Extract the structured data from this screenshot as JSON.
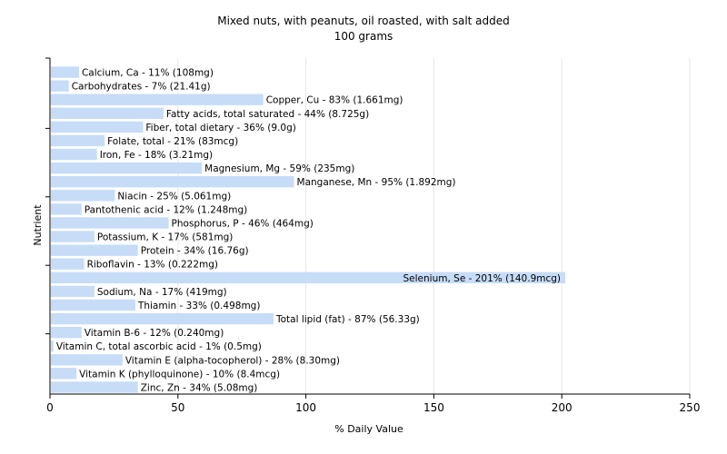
{
  "chart_data": {
    "type": "bar",
    "orientation": "horizontal",
    "title": "Mixed nuts, with peanuts, oil roasted, with salt added",
    "subtitle": "100 grams",
    "xlabel": "% Daily Value",
    "ylabel": "Nutrient",
    "xlim": [
      0,
      250
    ],
    "xticks": [
      0,
      50,
      100,
      150,
      200,
      250
    ],
    "grid": true,
    "bar_color": "#c6dcf7",
    "categories": [
      "Calcium, Ca",
      "Carbohydrates",
      "Copper, Cu",
      "Fatty acids, total saturated",
      "Fiber, total dietary",
      "Folate, total",
      "Iron, Fe",
      "Magnesium, Mg",
      "Manganese, Mn",
      "Niacin",
      "Pantothenic acid",
      "Phosphorus, P",
      "Potassium, K",
      "Protein",
      "Riboflavin",
      "Selenium, Se",
      "Sodium, Na",
      "Thiamin",
      "Total lipid (fat)",
      "Vitamin B-6",
      "Vitamin C, total ascorbic acid",
      "Vitamin E (alpha-tocopherol)",
      "Vitamin K (phylloquinone)",
      "Zinc, Zn"
    ],
    "values": [
      11,
      7,
      83,
      44,
      36,
      21,
      18,
      59,
      95,
      25,
      12,
      46,
      17,
      34,
      13,
      201,
      17,
      33,
      87,
      12,
      1,
      28,
      10,
      34
    ],
    "labels": [
      "Calcium, Ca - 11% (108mg)",
      "Carbohydrates - 7% (21.41g)",
      "Copper, Cu - 83% (1.661mg)",
      "Fatty acids, total saturated - 44% (8.725g)",
      "Fiber, total dietary - 36% (9.0g)",
      "Folate, total - 21% (83mcg)",
      "Iron, Fe - 18% (3.21mg)",
      "Magnesium, Mg - 59% (235mg)",
      "Manganese, Mn - 95% (1.892mg)",
      "Niacin - 25% (5.061mg)",
      "Pantothenic acid - 12% (1.248mg)",
      "Phosphorus, P - 46% (464mg)",
      "Potassium, K - 17% (581mg)",
      "Protein - 34% (16.76g)",
      "Riboflavin - 13% (0.222mg)",
      "Selenium, Se - 201% (140.9mcg)",
      "Sodium, Na - 17% (419mg)",
      "Thiamin - 33% (0.498mg)",
      "Total lipid (fat) - 87% (56.33g)",
      "Vitamin B-6 - 12% (0.240mg)",
      "Vitamin C, total ascorbic acid - 1% (0.5mg)",
      "Vitamin E (alpha-tocopherol) - 28% (8.30mg)",
      "Vitamin K (phylloquinone) - 10% (8.4mcg)",
      "Zinc, Zn - 34% (5.08mg)"
    ]
  }
}
